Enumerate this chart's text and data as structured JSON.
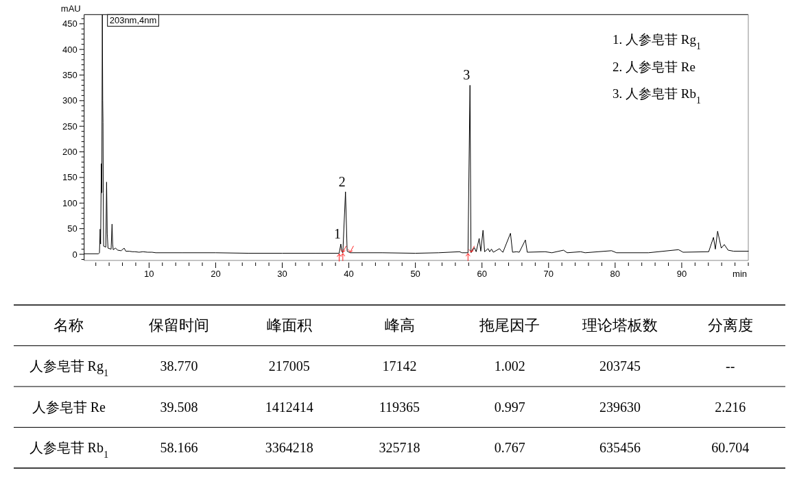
{
  "chart_data": [
    {
      "type": "line",
      "ylabel": "mAU",
      "xlabel": "min",
      "xlim": [
        0.25,
        100
      ],
      "ylim": [
        -12,
        468
      ],
      "xticks": [
        {
          "value": 2,
          "label": null
        },
        {
          "value": 4,
          "label": null
        },
        {
          "value": 6,
          "label": null
        },
        {
          "value": 8,
          "label": null
        },
        10,
        {
          "value": 12,
          "label": null
        },
        {
          "value": 14,
          "label": null
        },
        {
          "value": 16,
          "label": null
        },
        {
          "value": 18,
          "label": null
        },
        20,
        {
          "value": 22,
          "label": null
        },
        {
          "value": 24,
          "label": null
        },
        {
          "value": 26,
          "label": null
        },
        {
          "value": 28,
          "label": null
        },
        30,
        {
          "value": 32,
          "label": null
        },
        {
          "value": 34,
          "label": null
        },
        {
          "value": 36,
          "label": null
        },
        {
          "value": 38,
          "label": null
        },
        40,
        {
          "value": 42,
          "label": null
        },
        {
          "value": 44,
          "label": null
        },
        {
          "value": 46,
          "label": null
        },
        {
          "value": 48,
          "label": null
        },
        50,
        {
          "value": 52,
          "label": null
        },
        {
          "value": 54,
          "label": null
        },
        {
          "value": 56,
          "label": null
        },
        {
          "value": 58,
          "label": null
        },
        60,
        {
          "value": 62,
          "label": null
        },
        {
          "value": 64,
          "label": null
        },
        {
          "value": 66,
          "label": null
        },
        {
          "value": 68,
          "label": null
        },
        70,
        {
          "value": 72,
          "label": null
        },
        {
          "value": 74,
          "label": null
        },
        {
          "value": 76,
          "label": null
        },
        {
          "value": 78,
          "label": null
        },
        80,
        {
          "value": 82,
          "label": null
        },
        {
          "value": 84,
          "label": null
        },
        {
          "value": 86,
          "label": null
        },
        {
          "value": 88,
          "label": null
        },
        90,
        {
          "value": 92,
          "label": null
        },
        {
          "value": 94,
          "label": null
        },
        {
          "value": 96,
          "label": null
        },
        {
          "value": 98,
          "label": null
        },
        {
          "value": 100,
          "label": null
        }
      ],
      "yticks": [
        {
          "value": -10,
          "label": null
        },
        0,
        {
          "value": 10,
          "label": null
        },
        {
          "value": 20,
          "label": null
        },
        {
          "value": 30,
          "label": null
        },
        {
          "value": 40,
          "label": null
        },
        50,
        {
          "value": 60,
          "label": null
        },
        {
          "value": 70,
          "label": null
        },
        {
          "value": 80,
          "label": null
        },
        {
          "value": 90,
          "label": null
        },
        100,
        {
          "value": 110,
          "label": null
        },
        {
          "value": 120,
          "label": null
        },
        {
          "value": 130,
          "label": null
        },
        {
          "value": 140,
          "label": null
        },
        150,
        {
          "value": 160,
          "label": null
        },
        {
          "value": 170,
          "label": null
        },
        {
          "value": 180,
          "label": null
        },
        {
          "value": 190,
          "label": null
        },
        200,
        {
          "value": 210,
          "label": null
        },
        {
          "value": 220,
          "label": null
        },
        {
          "value": 230,
          "label": null
        },
        {
          "value": 240,
          "label": null
        },
        250,
        {
          "value": 260,
          "label": null
        },
        {
          "value": 270,
          "label": null
        },
        {
          "value": 280,
          "label": null
        },
        {
          "value": 290,
          "label": null
        },
        300,
        {
          "value": 310,
          "label": null
        },
        {
          "value": 320,
          "label": null
        },
        {
          "value": 330,
          "label": null
        },
        {
          "value": 340,
          "label": null
        },
        350,
        {
          "value": 360,
          "label": null
        },
        {
          "value": 370,
          "label": null
        },
        {
          "value": 380,
          "label": null
        },
        {
          "value": 390,
          "label": null
        },
        400,
        {
          "value": 410,
          "label": null
        },
        {
          "value": 420,
          "label": null
        },
        {
          "value": 430,
          "label": null
        },
        {
          "value": 440,
          "label": null
        },
        450,
        {
          "value": 460,
          "label": null
        }
      ],
      "legend": "top left",
      "series": [
        {
          "name": "203nm,4nm",
          "color": "#000000",
          "x": [
            0.25,
            2.4,
            2.55,
            2.65,
            2.72,
            2.83,
            2.9,
            2.98,
            3.04,
            3.08,
            3.12,
            3.17,
            3.5,
            3.62,
            3.72,
            3.83,
            4.3,
            4.44,
            4.53,
            4.61,
            4.96,
            5.3,
            5.8,
            6.26,
            6.5,
            7.0,
            7.5,
            7.88,
            8.5,
            9.08,
            9.8,
            10.45,
            11,
            15,
            20,
            25,
            30,
            35,
            38.4,
            38.55,
            38.8,
            38.95,
            39.1,
            39.5,
            39.75,
            40.2,
            45,
            50,
            53.5,
            56.63,
            57.0,
            57.9,
            58.2,
            58.35,
            58.86,
            59.13,
            59.58,
            59.82,
            60.16,
            60.4,
            60.92,
            61.16,
            61.43,
            61.71,
            62.63,
            62.88,
            63.15,
            64.28,
            64.59,
            65.2,
            65.6,
            66.52,
            66.8,
            69.5,
            70.5,
            72.25,
            72.8,
            74.83,
            75.5,
            79.46,
            80.2,
            85,
            89.52,
            90.2,
            94.05,
            94.77,
            95.05,
            95.39,
            95.94,
            96.39,
            96.97,
            97.8,
            100
          ],
          "values": [
            1,
            1,
            3,
            49,
            20,
            177,
            120,
            468,
            300,
            258,
            120,
            16,
            14,
            141,
            40,
            12,
            10,
            59,
            20,
            9,
            12,
            8,
            7,
            12,
            6,
            6,
            5,
            5,
            4,
            5,
            4,
            4,
            3,
            3,
            3,
            2,
            2,
            2,
            2,
            2,
            20,
            5,
            3,
            122,
            6,
            3,
            3,
            2,
            3,
            5,
            3,
            3,
            330,
            3,
            13,
            5,
            31,
            6,
            47,
            5,
            11,
            5,
            10,
            4,
            11,
            7,
            4,
            41,
            4,
            5,
            4,
            28,
            4,
            5,
            3,
            8,
            3,
            5,
            3,
            7,
            3,
            3,
            9,
            4,
            5,
            33,
            10,
            45,
            12,
            19,
            8,
            6,
            6
          ]
        }
      ],
      "annotations": [
        "1. 人参皂苷 Rg$_{1}$",
        "2. 人参皂苷 Re",
        "3. 人参皂苷 Rb$_{1}$",
        {
          "text": "1",
          "x": 38.8,
          "y": 20
        },
        {
          "text": "2",
          "x": 39.5,
          "y": 122
        },
        {
          "text": "3",
          "x": 58.2,
          "y": 330
        }
      ]
    },
    {
      "type": "other",
      "annotations": [
        "名称",
        "保留时间",
        "峰面积",
        "峰高",
        "拖尾因子",
        "理论塔板数",
        "分离度",
        "人参皂苷 Rg$_{1}$",
        "38.770",
        "217005",
        "17142",
        "1.002",
        "203745",
        "--",
        "人参皂苷 Re",
        "39.508",
        "1412414",
        "119365",
        "0.997",
        "239630",
        "2.216",
        "人参皂苷 Rb$_{1}$",
        "58.166",
        "3364218",
        "325718",
        "0.767",
        "635456",
        "60.704"
      ]
    }
  ]
}
